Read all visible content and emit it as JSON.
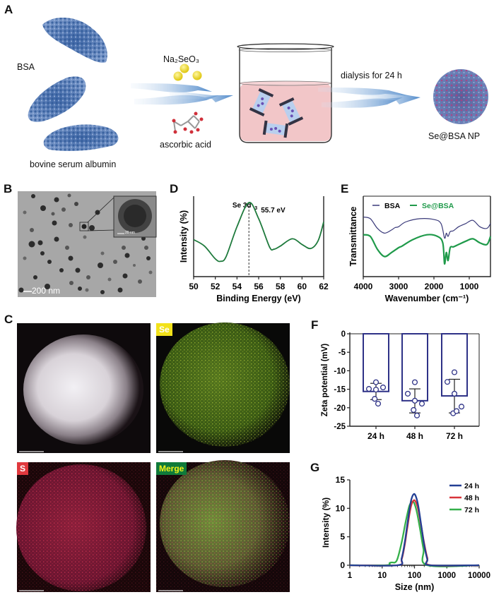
{
  "figure": {
    "panels": {
      "A": {
        "label": "A",
        "bsa_label": "BSA",
        "bsa_caption": "bovine serum albumin",
        "reagent_top": "Na₂SeO₃",
        "reagent_bottom": "ascorbic acid",
        "step_label": "dialysis for 24 h",
        "product_label": "Se@BSA NP"
      },
      "B": {
        "label": "B",
        "scalebar_main": "200 nm",
        "scalebar_inset": "20 nm"
      },
      "C": {
        "label": "C",
        "tiles": [
          {
            "name": "HAADF",
            "tag": ""
          },
          {
            "name": "Se",
            "tag": "Se",
            "tag_bg": "#f2e21a",
            "tag_fg": "#ffffff"
          },
          {
            "name": "S",
            "tag": "S",
            "tag_bg": "#e0393e",
            "tag_fg": "#ffffff"
          },
          {
            "name": "Merge",
            "tag": "Merge",
            "tag_bg": "#0f7a3a",
            "tag_fg": "#f2f21a"
          }
        ]
      },
      "D": {
        "label": "D"
      },
      "E": {
        "label": "E"
      },
      "F": {
        "label": "F"
      },
      "G": {
        "label": "G"
      }
    }
  },
  "chart_data": [
    {
      "panel": "D",
      "type": "line",
      "title": "",
      "xlabel": "Binding Energy (eV)",
      "ylabel": "Intensity (%)",
      "xlim": [
        50,
        62
      ],
      "xticks": [
        50,
        52,
        54,
        56,
        58,
        60,
        62
      ],
      "annotation": {
        "text_main": "Se 3d",
        "text_sub": "3",
        "value": "55.7 eV",
        "x": 55.1
      },
      "series": [
        {
          "name": "Se 3d",
          "color": "#1e7a3c",
          "x": [
            50,
            51,
            52,
            52.5,
            53,
            54,
            55.1,
            56,
            57,
            57.4,
            58,
            59.1,
            60,
            60.8,
            61.5,
            62
          ],
          "y": [
            0.46,
            0.38,
            0.22,
            0.19,
            0.25,
            0.62,
            0.92,
            0.72,
            0.37,
            0.34,
            0.38,
            0.47,
            0.4,
            0.35,
            0.45,
            0.68
          ]
        }
      ]
    },
    {
      "panel": "E",
      "type": "line",
      "xlabel": "Wavenumber (cm⁻¹)",
      "ylabel": "Transmittance",
      "xlim": [
        4000,
        400
      ],
      "xticks": [
        4000,
        3000,
        2000,
        1000
      ],
      "legend": [
        "BSA",
        "Se@BSA"
      ],
      "series": [
        {
          "name": "BSA",
          "color": "#3a3a7a",
          "x": [
            4000,
            3800,
            3600,
            3400,
            3200,
            3100,
            3000,
            2800,
            2400,
            2000,
            1800,
            1700,
            1650,
            1600,
            1540,
            1450,
            1300,
            1100,
            900,
            700,
            500,
            400
          ],
          "y": [
            0.74,
            0.72,
            0.6,
            0.54,
            0.58,
            0.61,
            0.62,
            0.68,
            0.72,
            0.71,
            0.66,
            0.48,
            0.54,
            0.5,
            0.56,
            0.57,
            0.62,
            0.66,
            0.7,
            0.62,
            0.6,
            0.66
          ]
        },
        {
          "name": "Se@BSA",
          "color": "#1f9a4a",
          "x": [
            4000,
            3800,
            3600,
            3400,
            3200,
            3000,
            2900,
            2600,
            2200,
            1900,
            1750,
            1700,
            1650,
            1600,
            1540,
            1450,
            1300,
            1100,
            900,
            700,
            500,
            400
          ],
          "y": [
            0.52,
            0.5,
            0.34,
            0.25,
            0.3,
            0.36,
            0.38,
            0.46,
            0.52,
            0.5,
            0.42,
            0.16,
            0.3,
            0.2,
            0.36,
            0.37,
            0.4,
            0.44,
            0.47,
            0.42,
            0.4,
            0.5
          ]
        }
      ]
    },
    {
      "panel": "F",
      "type": "bar",
      "xlabel": "",
      "ylabel": "Zeta potential (mV)",
      "ylim": [
        -25,
        0
      ],
      "yticks": [
        0,
        -5,
        -10,
        -15,
        -20,
        -25
      ],
      "categories": [
        "24 h",
        "48 h",
        "72 h"
      ],
      "values": [
        -15.6,
        -18.1,
        -16.8
      ],
      "error": [
        [
          -13.4,
          -17.8
        ],
        [
          -14.9,
          -21.4
        ],
        [
          -12.3,
          -21.4
        ]
      ],
      "points": [
        [
          -13.1,
          -14.9,
          -15.1,
          -14.5,
          -17.6,
          -18.9
        ],
        [
          -13.1,
          -16.2,
          -18.1,
          -18.9,
          -20.6,
          -22.1
        ],
        [
          -10.4,
          -13.0,
          -16.2,
          -19.7,
          -21.5,
          -20.9
        ]
      ],
      "color": "#2e3287"
    },
    {
      "panel": "G",
      "type": "line",
      "xlabel": "Size (nm)",
      "ylabel": "Intensity (%)",
      "xscale": "log",
      "xlim": [
        1,
        10000
      ],
      "xticks": [
        1,
        10,
        100,
        1000,
        10000
      ],
      "ylim": [
        0,
        15
      ],
      "yticks": [
        0,
        5,
        10,
        15
      ],
      "legend": [
        "24 h",
        "48 h",
        "72 h"
      ],
      "series": [
        {
          "name": "24 h",
          "color": "#233f94",
          "x": [
            1,
            30,
            40,
            50,
            60,
            70,
            80,
            95,
            110,
            130,
            160,
            200,
            250,
            300,
            10000
          ],
          "y": [
            0,
            0,
            1.2,
            4.0,
            7.2,
            9.8,
            11.6,
            12.5,
            12.1,
            10.5,
            7.2,
            3.5,
            1.0,
            0,
            0
          ]
        },
        {
          "name": "48 h",
          "color": "#d8343a",
          "x": [
            1,
            30,
            40,
            50,
            60,
            70,
            80,
            95,
            110,
            130,
            160,
            200,
            250,
            320,
            10000
          ],
          "y": [
            0,
            0,
            1.0,
            3.6,
            6.6,
            9.0,
            10.6,
            11.4,
            11.1,
            9.8,
            7.0,
            3.8,
            1.3,
            0,
            0
          ]
        },
        {
          "name": "72 h",
          "color": "#35b04a",
          "x": [
            1,
            13,
            17,
            20,
            25,
            30,
            40,
            50,
            60,
            70,
            85,
            100,
            120,
            150,
            190,
            250,
            10000
          ],
          "y": [
            0,
            0,
            0.4,
            0.5,
            0.5,
            1.2,
            4.0,
            6.8,
            9.0,
            10.5,
            11.2,
            10.8,
            9.2,
            6.2,
            2.8,
            0,
            0
          ]
        }
      ]
    }
  ]
}
